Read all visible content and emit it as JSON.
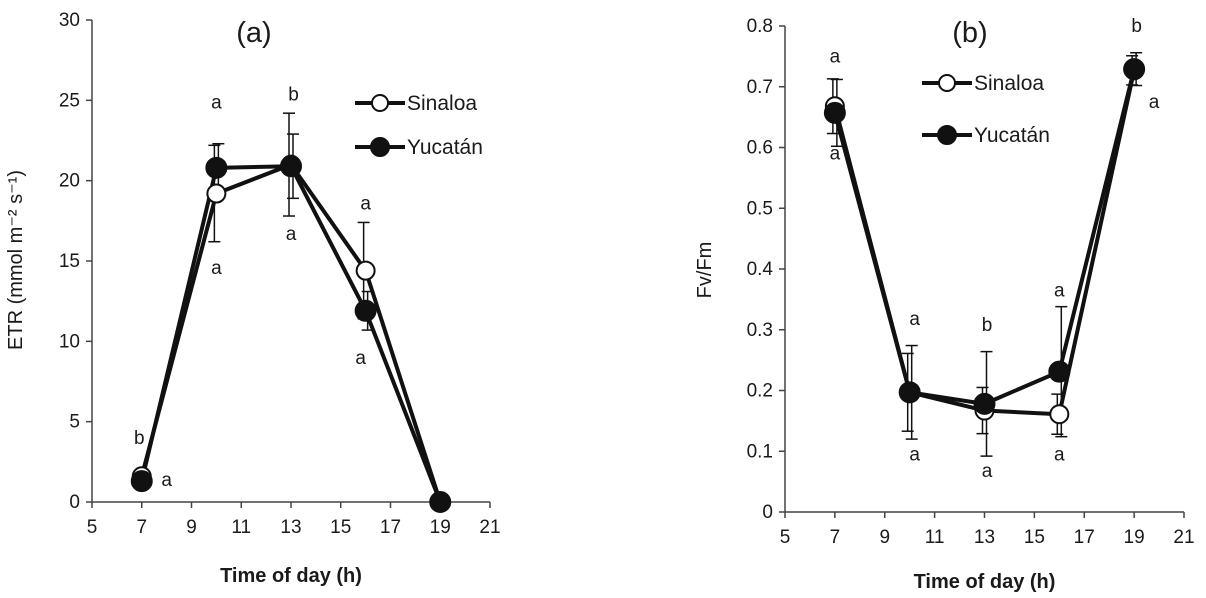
{
  "chart_data": [
    {
      "type": "line",
      "panel_label": "(a)",
      "xlabel": "Time of day (h)",
      "ylabel": "ETR (mmol m⁻² s⁻¹)",
      "xlim": [
        5,
        21
      ],
      "ylim": [
        0,
        30
      ],
      "xticks": [
        "5",
        "7",
        "9",
        "11",
        "13",
        "15",
        "17",
        "19",
        "21"
      ],
      "yticks": [
        "0",
        "5",
        "10",
        "15",
        "20",
        "25",
        "30"
      ],
      "legend_position": "top-right",
      "series": [
        {
          "name": "Sinaloa",
          "marker": "open-circle",
          "x": [
            7,
            10,
            13,
            16,
            19
          ],
          "y": [
            1.6,
            19.2,
            21.0,
            14.4,
            0.0
          ],
          "err": [
            0,
            3.0,
            3.2,
            3.0,
            0
          ]
        },
        {
          "name": "Yucatán",
          "marker": "filled-circle",
          "x": [
            7,
            10,
            13,
            16,
            19
          ],
          "y": [
            1.3,
            20.8,
            20.9,
            11.9,
            0.0
          ],
          "err": [
            0,
            1.5,
            2.0,
            1.2,
            0
          ]
        }
      ],
      "annotations": [
        {
          "text": "b",
          "x": 6.9,
          "y": 3.6
        },
        {
          "text": "a",
          "x": 8.0,
          "y": 1.0
        },
        {
          "text": "a",
          "x": 10.0,
          "y": 24.5
        },
        {
          "text": "a",
          "x": 10.0,
          "y": 14.2
        },
        {
          "text": "b",
          "x": 13.1,
          "y": 25.0
        },
        {
          "text": "a",
          "x": 13.0,
          "y": 16.3
        },
        {
          "text": "a",
          "x": 16.0,
          "y": 18.2
        },
        {
          "text": "a",
          "x": 15.8,
          "y": 8.6
        }
      ]
    },
    {
      "type": "line",
      "panel_label": "(b)",
      "xlabel": "Time of day (h)",
      "ylabel": "Fv/Fm",
      "xlim": [
        5,
        21
      ],
      "ylim": [
        0,
        0.8
      ],
      "xticks": [
        "5",
        "7",
        "9",
        "11",
        "13",
        "15",
        "17",
        "19",
        "21"
      ],
      "yticks": [
        "0",
        "0.1",
        "0.2",
        "0.3",
        "0.4",
        "0.5",
        "0.6",
        "0.7",
        "0.8"
      ],
      "legend_position": "top-center",
      "series": [
        {
          "name": "Sinaloa",
          "marker": "open-circle",
          "x": [
            7,
            10,
            13,
            16,
            19
          ],
          "y": [
            0.668,
            0.197,
            0.167,
            0.161,
            0.727
          ],
          "err": [
            0.045,
            0.064,
            0.038,
            0.033,
            0.024
          ]
        },
        {
          "name": "Yucatán",
          "marker": "filled-circle",
          "x": [
            7,
            10,
            13,
            16,
            19
          ],
          "y": [
            0.657,
            0.197,
            0.178,
            0.231,
            0.729
          ],
          "err": [
            0.055,
            0.077,
            0.086,
            0.107,
            0.027
          ]
        }
      ],
      "annotations": [
        {
          "text": "a",
          "x": 7.0,
          "y": 0.74
        },
        {
          "text": "a",
          "x": 7.0,
          "y": 0.58
        },
        {
          "text": "a",
          "x": 10.2,
          "y": 0.308
        },
        {
          "text": "a",
          "x": 10.2,
          "y": 0.085
        },
        {
          "text": "b",
          "x": 13.1,
          "y": 0.298
        },
        {
          "text": "a",
          "x": 13.1,
          "y": 0.058
        },
        {
          "text": "a",
          "x": 16.0,
          "y": 0.355
        },
        {
          "text": "a",
          "x": 16.0,
          "y": 0.085
        },
        {
          "text": "b",
          "x": 19.1,
          "y": 0.79
        },
        {
          "text": "a",
          "x": 19.8,
          "y": 0.665
        }
      ]
    }
  ]
}
